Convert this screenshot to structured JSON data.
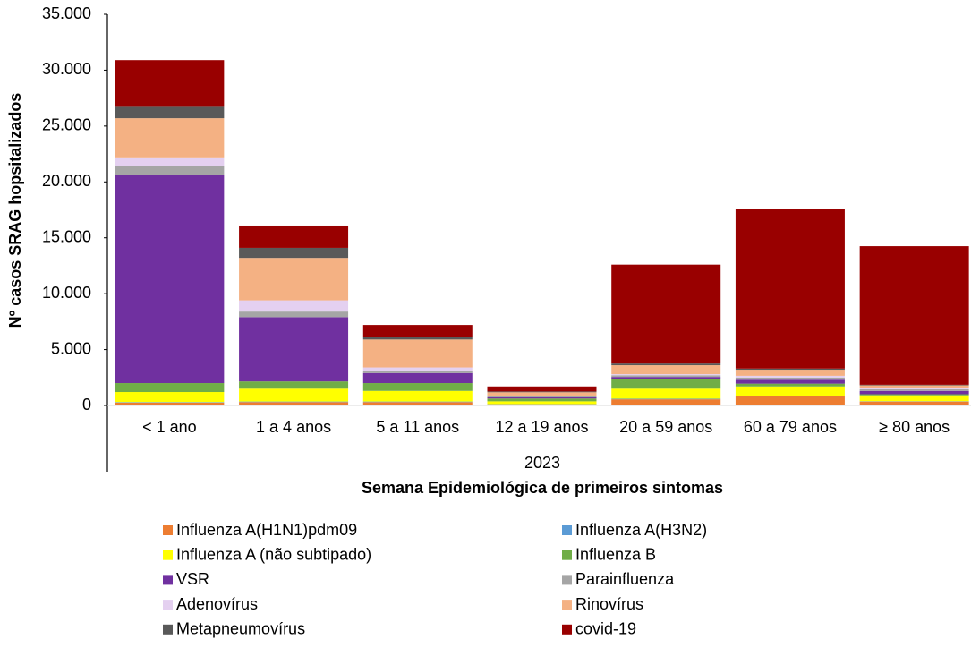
{
  "chart_data": {
    "type": "stacked_bar",
    "ylabel": "Nº casos SRAG hopsitalizados",
    "xlabel": "Semana Epidemiológica de primeiros sintomas",
    "group_label": "2023",
    "categories": [
      "< 1 ano",
      "1 a 4 anos",
      "5 a 11 anos",
      "12 a 19 anos",
      "20 a 59 anos",
      "60 a 79 anos",
      "≥ 80 anos"
    ],
    "ylim": [
      0,
      35000
    ],
    "yticks": [
      0,
      {
        "value": 5000,
        "label": "5.000"
      },
      {
        "value": 10000,
        "label": "10.000"
      },
      {
        "value": 15000,
        "label": "15.000"
      },
      {
        "value": 20000,
        "label": "20.000"
      },
      {
        "value": 25000,
        "label": "25.000"
      },
      {
        "value": 30000,
        "label": "30.000"
      },
      {
        "value": 35000,
        "label": "35.000"
      }
    ],
    "series": [
      {
        "name": "Influenza A(H1N1)pdm09",
        "color": "#ed7d31",
        "values": [
          250,
          300,
          300,
          100,
          550,
          800,
          350
        ]
      },
      {
        "name": "Influenza A(H3N2)",
        "color": "#5b9bd5",
        "values": [
          50,
          50,
          50,
          20,
          50,
          50,
          30
        ]
      },
      {
        "name": "Influenza A (não subtipado)",
        "color": "#ffff00",
        "values": [
          900,
          1150,
          950,
          250,
          900,
          850,
          520
        ]
      },
      {
        "name": "Influenza B",
        "color": "#70ad47",
        "values": [
          800,
          650,
          700,
          250,
          900,
          250,
          100
        ]
      },
      {
        "name": "VSR",
        "color": "#7030a0",
        "values": [
          18600,
          5750,
          900,
          100,
          150,
          350,
          300
        ]
      },
      {
        "name": "Parainfluenza",
        "color": "#a5a5a5",
        "values": [
          800,
          500,
          200,
          80,
          150,
          200,
          150
        ]
      },
      {
        "name": "Adenovírus",
        "color": "#e4d0f0",
        "values": [
          800,
          1000,
          300,
          80,
          100,
          150,
          100
        ]
      },
      {
        "name": "Rinovírus",
        "color": "#f4b183",
        "values": [
          3500,
          3800,
          2500,
          300,
          800,
          550,
          250
        ]
      },
      {
        "name": "Metapneumovírus",
        "color": "#595959",
        "values": [
          1100,
          900,
          200,
          70,
          150,
          100,
          50
        ]
      },
      {
        "name": "covid-19",
        "color": "#990000",
        "values": [
          4100,
          2000,
          1100,
          450,
          8850,
          14300,
          12400
        ]
      }
    ]
  }
}
